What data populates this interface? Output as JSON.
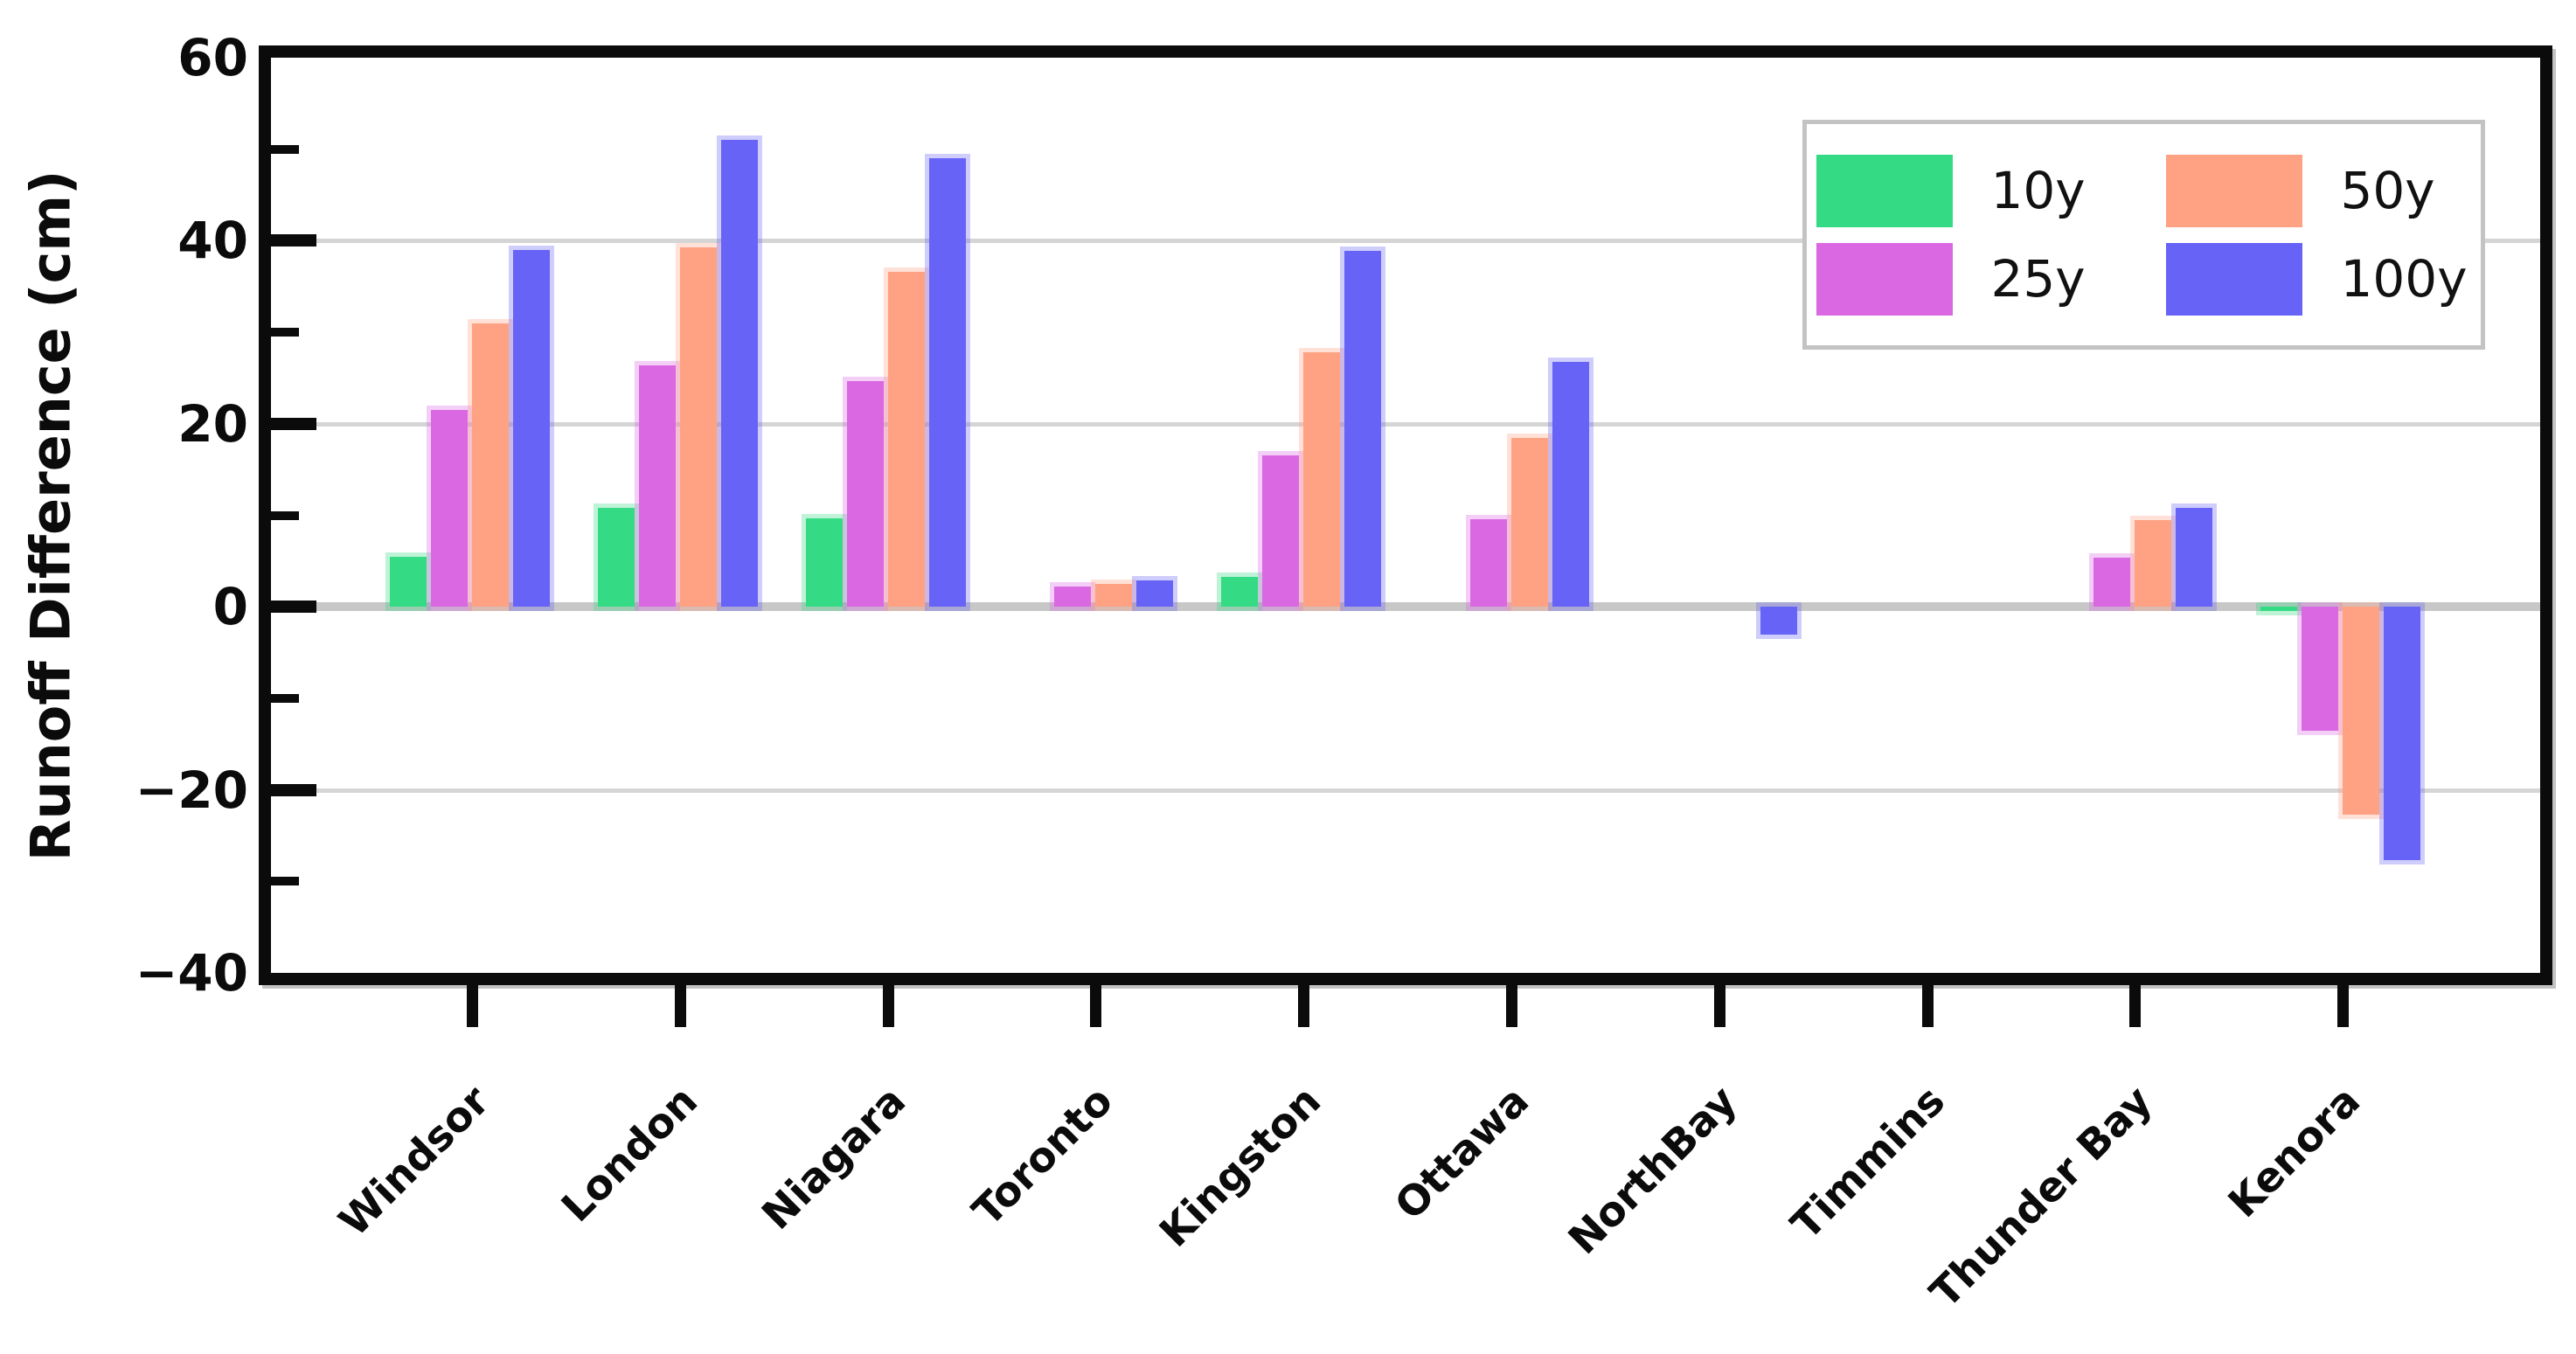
{
  "figure": {
    "background": "#ffffff",
    "frame_color": "#0b0b0b",
    "gridline_color": "#d5d5d5",
    "zeroline_color": "#c7c7c7",
    "y_axis_title": "Runoff Difference (cm)"
  },
  "chart_data": {
    "type": "bar",
    "title": "",
    "xlabel": "",
    "ylabel": "Runoff Difference (cm)",
    "ylim": [
      -40,
      60
    ],
    "grid": "horizontal",
    "legend_position": "upper right",
    "categories": [
      "Windsor",
      "London",
      "Niagara",
      "Toronto",
      "Kingston",
      "Ottawa",
      "NorthBay",
      "Timmins",
      "Thunder Bay",
      "Kenora"
    ],
    "series": [
      {
        "name": "10y",
        "color": "#35db84",
        "rgb": "53,219,132",
        "values": [
          5.5,
          10.8,
          9.7,
          0,
          3.3,
          0,
          0,
          0,
          0,
          -0.5
        ]
      },
      {
        "name": "25y",
        "color": "#da68e2",
        "rgb": "218,104,226",
        "values": [
          21.5,
          26.4,
          24.7,
          2.2,
          16.5,
          9.6,
          0,
          0,
          5.4,
          -13.5
        ]
      },
      {
        "name": "50y",
        "color": "#ffa183",
        "rgb": "255,161,131",
        "values": [
          31.0,
          39.3,
          36.6,
          2.5,
          27.8,
          18.5,
          0,
          0,
          9.5,
          -22.7
        ]
      },
      {
        "name": "100y",
        "color": "#6663f6",
        "rgb": "102,99,246",
        "values": [
          39.0,
          51.0,
          49.0,
          2.9,
          38.9,
          26.8,
          -3.0,
          0,
          10.8,
          -27.7
        ]
      }
    ],
    "yticks": [
      {
        "value": 60,
        "label": "60"
      },
      {
        "value": 40,
        "label": "40"
      },
      {
        "value": 20,
        "label": "20"
      },
      {
        "value": 0,
        "label": "0"
      },
      {
        "value": -20,
        "label": "−20"
      },
      {
        "value": -40,
        "label": "−40"
      }
    ],
    "yminorticks": [
      50,
      30,
      10,
      -10,
      -30
    ],
    "gridlines": [
      40,
      20,
      -20
    ],
    "legend": {
      "items": [
        {
          "label": "10y",
          "color": "#35db84"
        },
        {
          "label": "50y",
          "color": "#ffa183"
        },
        {
          "label": "25y",
          "color": "#da68e2"
        },
        {
          "label": "100y",
          "color": "#6663f6"
        }
      ]
    }
  }
}
